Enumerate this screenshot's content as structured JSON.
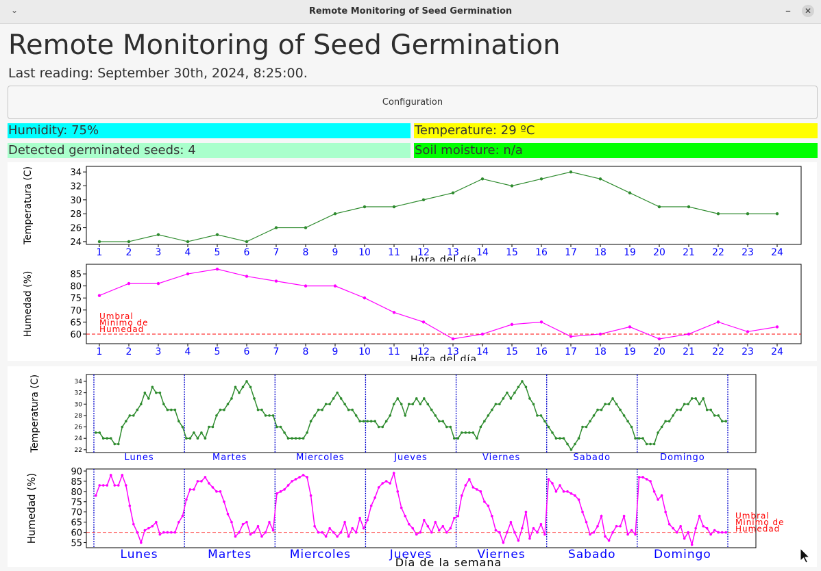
{
  "window": {
    "title": "Remote Monitoring of Seed Germination"
  },
  "app": {
    "title": "Remote Monitoring of Seed Germination",
    "last_reading": "Last reading: September 30th, 2024, 8:25:00.",
    "config_button": "Configuration"
  },
  "status": {
    "humidity": "Humidity: 75%",
    "temperature": "Temperature: 29 ºC",
    "seeds": "Detected germinated seeds: 4",
    "soil": "Soil moisture: n/a"
  },
  "colors": {
    "humidity_bg": "#00ffff",
    "temperature_bg": "#ffff00",
    "seeds_bg": "#aaffcc",
    "soil_bg": "#00ff00",
    "temp_line": "#2e8b2e",
    "hum_line": "#ff00ff",
    "threshold": "#ff0000",
    "tick_blue": "#0000ff"
  },
  "chart_data": [
    {
      "type": "line",
      "ylabel": "Temperatura (C)",
      "xlabel": "Hora del día",
      "x": [
        1,
        2,
        3,
        4,
        5,
        6,
        7,
        8,
        9,
        10,
        11,
        12,
        13,
        14,
        15,
        16,
        17,
        18,
        19,
        20,
        21,
        22,
        23,
        24
      ],
      "values": [
        24,
        24,
        25,
        24,
        25,
        24,
        26,
        26,
        28,
        29,
        29,
        30,
        31,
        33,
        32,
        33,
        34,
        33,
        31,
        29,
        29,
        28,
        28,
        28
      ],
      "yticks": [
        24,
        26,
        28,
        30,
        32,
        34
      ],
      "ylim": [
        23.6,
        34.8
      ],
      "grid": false
    },
    {
      "type": "line",
      "ylabel": "Humedad (%)",
      "xlabel": "Hora del día",
      "x": [
        1,
        2,
        3,
        4,
        5,
        6,
        7,
        8,
        9,
        10,
        11,
        12,
        13,
        14,
        15,
        16,
        17,
        18,
        19,
        20,
        21,
        22,
        23,
        24
      ],
      "values": [
        76,
        81,
        81,
        85,
        87,
        84,
        82,
        80,
        80,
        75,
        69,
        65,
        58,
        60,
        64,
        65,
        59,
        60,
        63,
        58,
        60,
        65,
        61,
        63
      ],
      "yticks": [
        60,
        65,
        70,
        75,
        80,
        85
      ],
      "ylim": [
        56,
        89
      ],
      "threshold": 60,
      "threshold_label": [
        "Umbral",
        "Minimo de",
        "Humedad"
      ],
      "grid": false
    },
    {
      "type": "line",
      "ylabel": "Temperatura (C)",
      "categories": [
        "Lunes",
        "Martes",
        "Miercoles",
        "Jueves",
        "Viernes",
        "Sabado",
        "Domingo"
      ],
      "values": [
        [
          25,
          25,
          24,
          24,
          24,
          23,
          23,
          26,
          27,
          28,
          28,
          29,
          30,
          32,
          31,
          33,
          32,
          32,
          30,
          29,
          29,
          29,
          27,
          26
        ],
        [
          24,
          24,
          25,
          24,
          25,
          24,
          26,
          26,
          28,
          29,
          29,
          30,
          31,
          33,
          32,
          33,
          34,
          33,
          31,
          29,
          29,
          28,
          28,
          28
        ],
        [
          26,
          26,
          25,
          24,
          24,
          24,
          24,
          24,
          25,
          27,
          28,
          29,
          29,
          30,
          30,
          31,
          32,
          31,
          30,
          29,
          29,
          28,
          27,
          27
        ],
        [
          27,
          27,
          27,
          26,
          26,
          27,
          28,
          30,
          31,
          30,
          28,
          30,
          30,
          31,
          30,
          31,
          30,
          29,
          28,
          27,
          27,
          26,
          26,
          24
        ],
        [
          24,
          25,
          25,
          25,
          25,
          24,
          26,
          27,
          28,
          29,
          30,
          30,
          31,
          32,
          31,
          32,
          33,
          34,
          33,
          31,
          30,
          28,
          28,
          27
        ],
        [
          26,
          25,
          24,
          24,
          24,
          23,
          22,
          23,
          24,
          26,
          26,
          27,
          28,
          29,
          29,
          30,
          30,
          31,
          30,
          29,
          28,
          27,
          26,
          24
        ],
        [
          24,
          24,
          23,
          23,
          23,
          25,
          26,
          27,
          27,
          28,
          29,
          29,
          30,
          30,
          31,
          31,
          30,
          31,
          29,
          29,
          28,
          28,
          27,
          27
        ]
      ],
      "yticks": [
        22,
        24,
        26,
        28,
        30,
        32,
        34
      ],
      "ylim": [
        21.5,
        35.2
      ],
      "grid": false
    },
    {
      "type": "line",
      "ylabel": "Humedad (%)",
      "xlabel": "Día de la semana",
      "categories": [
        "Lunes",
        "Martes",
        "Miercoles",
        "Jueves",
        "Viernes",
        "Sabado",
        "Domingo"
      ],
      "values": [
        [
          78,
          83,
          83,
          83,
          88,
          83,
          83,
          88,
          83,
          73,
          64,
          60,
          55,
          61,
          62,
          63,
          65,
          59,
          60,
          60,
          60,
          60,
          65,
          68
        ],
        [
          76,
          81,
          81,
          85,
          85,
          87,
          84,
          82,
          80,
          80,
          75,
          69,
          65,
          58,
          60,
          64,
          65,
          59,
          60,
          63,
          58,
          60,
          65,
          61
        ],
        [
          79,
          80,
          81,
          83,
          85,
          86,
          87,
          88,
          87,
          78,
          63,
          60,
          60,
          58,
          62,
          60,
          58,
          60,
          65,
          58,
          62,
          60,
          67,
          62
        ],
        [
          66,
          73,
          77,
          82,
          84,
          85,
          84,
          89,
          80,
          72,
          68,
          64,
          62,
          59,
          60,
          66,
          63,
          60,
          65,
          61,
          63,
          60,
          62,
          67
        ],
        [
          68,
          78,
          83,
          86,
          82,
          81,
          80,
          75,
          73,
          68,
          61,
          60,
          55,
          60,
          65,
          60,
          56,
          62,
          70,
          57,
          62,
          60,
          64,
          59
        ],
        [
          86,
          84,
          80,
          83,
          80,
          80,
          79,
          78,
          76,
          70,
          65,
          59,
          60,
          63,
          68,
          58,
          56,
          60,
          63,
          63,
          68,
          59,
          61,
          59
        ],
        [
          87,
          87,
          86,
          85,
          80,
          76,
          78,
          70,
          64,
          62,
          60,
          63,
          57,
          60,
          54,
          62,
          68,
          63,
          62,
          59,
          61,
          60,
          60,
          60
        ]
      ],
      "yticks": [
        55,
        60,
        65,
        70,
        75,
        80,
        85,
        90
      ],
      "ylim": [
        52.5,
        91
      ],
      "threshold": 60,
      "threshold_label": [
        "Umbral",
        "Minimo de",
        "Humedad"
      ],
      "grid": false
    }
  ]
}
